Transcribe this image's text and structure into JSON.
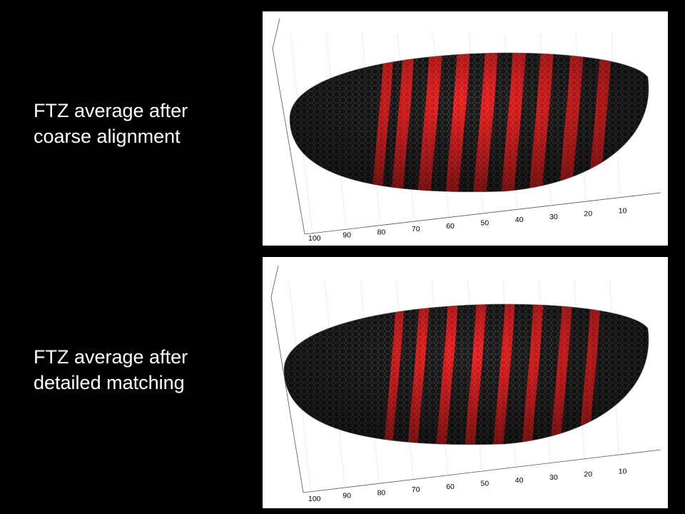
{
  "slide": {
    "background": "#000000",
    "text_color": "#ffffff",
    "stripe_color": "#ff1a1a"
  },
  "panels": [
    {
      "caption_line1": "FTZ average after",
      "caption_line2": "coarse alignment",
      "axis_ticks": [
        "100",
        "90",
        "80",
        "70",
        "60",
        "50",
        "40",
        "30",
        "20",
        "10"
      ]
    },
    {
      "caption_line1": "FTZ average after",
      "caption_line2": "detailed matching",
      "axis_ticks": [
        "100",
        "90",
        "80",
        "70",
        "60",
        "50",
        "40",
        "30",
        "20",
        "10"
      ]
    }
  ]
}
